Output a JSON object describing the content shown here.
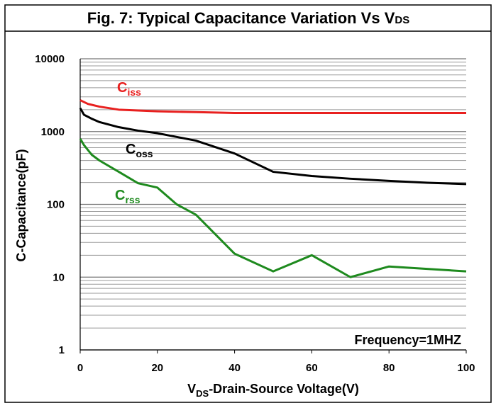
{
  "chart_data": {
    "type": "line",
    "title": [
      "Fig. 7: Typical Capacitance Variation Vs V",
      "DS"
    ],
    "xlabel": [
      "V",
      "DS",
      "-Drain-Source Voltage(V)"
    ],
    "ylabel": "C-Capacitance(pF)",
    "annotation": "Frequency=1MHZ",
    "xlim": [
      0,
      100
    ],
    "xticks": [
      0,
      20,
      40,
      60,
      80,
      100
    ],
    "ylim": [
      1,
      10000
    ],
    "yticks": [
      1,
      10,
      100,
      1000,
      10000
    ],
    "log_y": true,
    "grid": true,
    "minor_grid": true,
    "series": [
      {
        "name": "Ciss",
        "color": "#e8201f",
        "x": [
          0,
          2,
          5,
          10,
          20,
          30,
          40,
          50,
          60,
          70,
          80,
          100
        ],
        "values": [
          2700,
          2400,
          2200,
          2000,
          1900,
          1850,
          1800,
          1800,
          1800,
          1800,
          1800,
          1800
        ]
      },
      {
        "name": "Coss",
        "color": "#000000",
        "x": [
          0,
          1,
          3,
          5,
          10,
          15,
          20,
          30,
          40,
          50,
          60,
          70,
          80,
          90,
          100
        ],
        "values": [
          2100,
          1700,
          1500,
          1350,
          1150,
          1030,
          950,
          750,
          500,
          280,
          245,
          225,
          210,
          198,
          190
        ]
      },
      {
        "name": "Crss",
        "color": "#1e8a1e",
        "x": [
          0,
          1,
          3,
          5,
          10,
          15,
          20,
          25,
          30,
          40,
          50,
          60,
          70,
          80,
          100
        ],
        "values": [
          800,
          650,
          480,
          400,
          280,
          195,
          170,
          100,
          72,
          21,
          12,
          20,
          10,
          14,
          12
        ]
      }
    ]
  }
}
